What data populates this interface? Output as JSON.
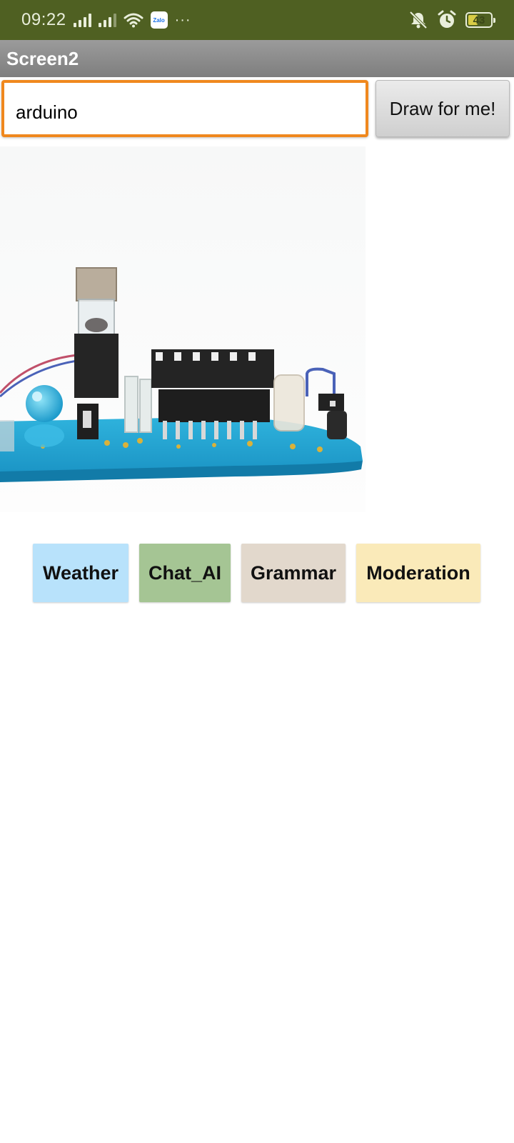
{
  "status_bar": {
    "time": "09:22",
    "battery_level": "43",
    "battery_percent": 43,
    "background_color": "#4f6022",
    "icons": [
      "signal-icon",
      "signal-icon",
      "wifi-icon",
      "zalo-icon",
      "more-icon",
      "mute-notifications-icon",
      "alarm-icon",
      "battery-icon"
    ],
    "zalo_label": "Zalo",
    "more_label": "···"
  },
  "app_bar": {
    "title": "Screen2"
  },
  "prompt": {
    "value": "arduino",
    "accent_color": "#f0881e"
  },
  "draw_button": {
    "label": "Draw for me!"
  },
  "image": {
    "description_icon": "generated-image"
  },
  "nav_buttons": [
    {
      "label": "Weather",
      "color": "#b8e2fb"
    },
    {
      "label": "Chat_AI",
      "color": "#a5c594"
    },
    {
      "label": "Grammar",
      "color": "#e2d8cc"
    },
    {
      "label": "Moderation",
      "color": "#faeab9"
    }
  ]
}
